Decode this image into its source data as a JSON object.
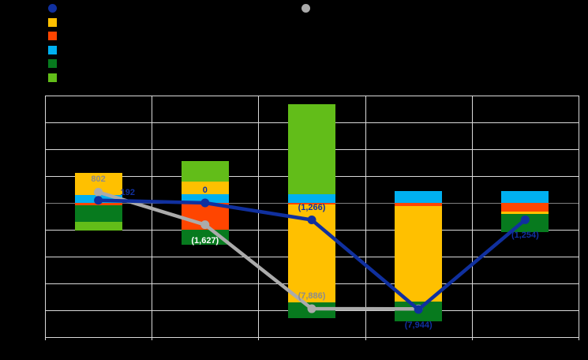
{
  "canvas": {
    "background": "#000000"
  },
  "legend": {
    "items": [
      {
        "name": "legend-cy-total-line",
        "shape": "circle",
        "color": "#10309F",
        "label": ""
      },
      {
        "name": "legend-amber-series",
        "shape": "square",
        "color": "#FFC000",
        "label": ""
      },
      {
        "name": "legend-orange-red-series",
        "shape": "square",
        "color": "#FF4500",
        "label": ""
      },
      {
        "name": "legend-sky-blue-series",
        "shape": "square",
        "color": "#00B0F0",
        "label": ""
      },
      {
        "name": "legend-dark-green-series",
        "shape": "square",
        "color": "#077A1E",
        "label": ""
      },
      {
        "name": "legend-light-green-series",
        "shape": "square",
        "color": "#62BD19",
        "label": ""
      }
    ],
    "right_item": {
      "name": "legend-py-total-line",
      "shape": "circle",
      "color": "#ABABAB",
      "label": ""
    }
  },
  "chart_data": {
    "type": "bar",
    "subtype": "stacked-bar-with-lines",
    "categories": [
      "",
      "",
      "",
      "",
      ""
    ],
    "series": [
      {
        "name": "amber",
        "color": "#FFC000",
        "values": [
          1650,
          930,
          -7300,
          -7150,
          -150
        ]
      },
      {
        "name": "orange-red",
        "color": "#FF4500",
        "values": [
          -160,
          -2000,
          -130,
          -220,
          -670
        ]
      },
      {
        "name": "sky-blue",
        "color": "#00B0F0",
        "values": [
          590,
          650,
          630,
          870,
          900
        ]
      },
      {
        "name": "dark-green",
        "color": "#077A1E",
        "values": [
          -1250,
          -1130,
          -1166,
          -1444,
          -1334
        ]
      },
      {
        "name": "light-green",
        "color": "#62BD19",
        "values": [
          -638,
          1550,
          6700,
          0,
          0
        ]
      }
    ],
    "stack_order_positive": [
      "sky-blue",
      "amber",
      "light-green"
    ],
    "stack_order_negative": [
      "orange-red",
      "amber",
      "dark-green",
      "light-green"
    ],
    "line_series": [
      {
        "name": "py-total-line",
        "color": "#ABABAB",
        "values": [
          802,
          -1627,
          -7886,
          -7900,
          null
        ],
        "labels": [
          "802",
          "(1,627)",
          "(7,886)",
          "",
          ""
        ],
        "label_placements": [
          "above",
          "below",
          "above",
          "",
          ""
        ],
        "label_colors": [
          "#8C8C8C",
          "#FFFFFF",
          "#8C8C8C",
          "",
          ""
        ]
      },
      {
        "name": "cy-total-line",
        "color": "#10309F",
        "values": [
          192,
          0,
          -1266,
          -7944,
          -1254
        ],
        "labels": [
          "192",
          "0",
          "(1,266)",
          "(7,944)",
          "(1,254)"
        ],
        "label_placements": [
          "right",
          "above",
          "above",
          "below",
          "below"
        ],
        "label_colors": [
          "#10309F",
          "#10309F",
          "#10309F",
          "#10309F",
          "#10309F"
        ]
      }
    ],
    "y_axis": {
      "min": -10000,
      "max": 8000,
      "gridline_step": 2000,
      "tick_labels_visible": false
    },
    "x_axis": {
      "tick_labels_visible": false
    },
    "grid": true,
    "gridline_color": "#D9D9D9",
    "zero_line_color": "#7F7F7F",
    "title": ""
  }
}
